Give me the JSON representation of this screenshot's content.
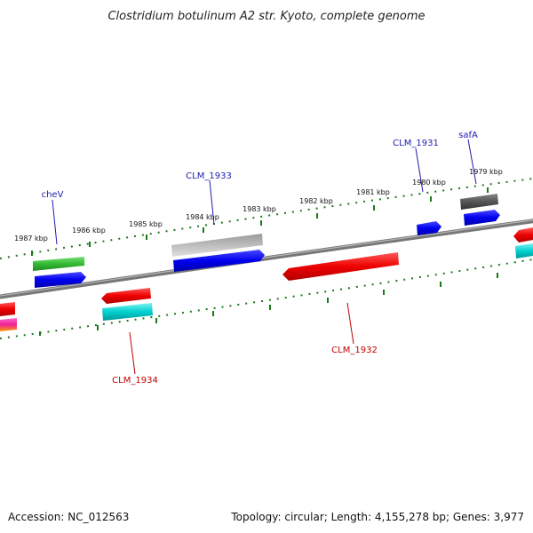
{
  "title": "Clostridium botulinum A2 str. Kyoto, complete genome",
  "footer": {
    "accession": "Accession: NC_012563",
    "summary": "Topology: circular; Length: 4,155,278 bp; Genes: 3,977"
  },
  "scale": {
    "ticks": [
      {
        "label": "1987 kbp",
        "kbp": 1987
      },
      {
        "label": "1986 kbp",
        "kbp": 1986
      },
      {
        "label": "1985 kbp",
        "kbp": 1985
      },
      {
        "label": "1984 kbp",
        "kbp": 1984
      },
      {
        "label": "1983 kbp",
        "kbp": 1983
      },
      {
        "label": "1982 kbp",
        "kbp": 1982
      },
      {
        "label": "1981 kbp",
        "kbp": 1981
      },
      {
        "label": "1980 kbp",
        "kbp": 1980
      },
      {
        "label": "1979 kbp",
        "kbp": 1979
      }
    ]
  },
  "gene_labels": [
    {
      "text": "cheV",
      "strand": "forward"
    },
    {
      "text": "CLM_1933",
      "strand": "forward"
    },
    {
      "text": "CLM_1931",
      "strand": "forward"
    },
    {
      "text": "safA",
      "strand": "forward"
    },
    {
      "text": "CLM_1934",
      "strand": "reverse"
    },
    {
      "text": "CLM_1932",
      "strand": "reverse"
    }
  ],
  "colors": {
    "backbone": "#808080",
    "tick": "#1a7a1a",
    "forward_cds": "#0000ff",
    "reverse_cds": "#ff0000",
    "cyan_feature": "#00cccc",
    "green_feature": "#33bb33",
    "grey_feature": "#aaaaaa",
    "dark_grey_feature": "#666666",
    "forward_label": "#1c1cae",
    "reverse_label": "#c00000"
  }
}
